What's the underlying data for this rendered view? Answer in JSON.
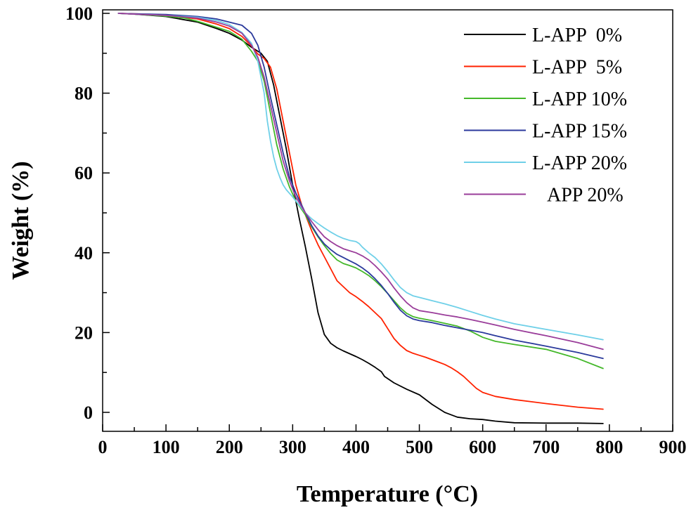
{
  "chart_data": {
    "type": "line",
    "title": "",
    "xlabel": "Temperature (°C)",
    "ylabel": "Weight (%)",
    "xlim": [
      0,
      900
    ],
    "ylim": [
      -5,
      101
    ],
    "xticks": [
      0,
      100,
      200,
      300,
      400,
      500,
      600,
      700,
      800,
      900
    ],
    "xtick_labels": [
      "0",
      "100",
      "200",
      "300",
      "400",
      "500",
      "600",
      "700",
      "800",
      "900"
    ],
    "yticks": [
      0,
      20,
      40,
      60,
      80,
      100
    ],
    "ytick_labels": [
      "0",
      "20",
      "40",
      "60",
      "80",
      "100"
    ],
    "legend_position": "top-right",
    "grid": false,
    "series": [
      {
        "name": "L-APP  0%",
        "color": "#000000",
        "x": [
          25,
          50,
          100,
          150,
          180,
          200,
          220,
          235,
          250,
          260,
          270,
          280,
          290,
          300,
          310,
          320,
          330,
          340,
          350,
          360,
          370,
          380,
          390,
          400,
          410,
          420,
          430,
          440,
          445,
          460,
          480,
          500,
          520,
          540,
          560,
          580,
          600,
          620,
          650,
          700,
          750,
          790
        ],
        "y": [
          100,
          99.8,
          99.2,
          97.8,
          96.2,
          95,
          93.3,
          91.5,
          90,
          88,
          82,
          74,
          66,
          57,
          49,
          41.5,
          33.5,
          25,
          19.5,
          17.3,
          16.2,
          15.4,
          14.7,
          14,
          13.2,
          12.3,
          11.3,
          10.2,
          9,
          7.4,
          5.8,
          4.4,
          2,
          0,
          -1.2,
          -1.6,
          -1.8,
          -2.2,
          -2.6,
          -2.7,
          -2.7,
          -2.8
        ]
      },
      {
        "name": "L-APP  5%",
        "color": "#ff2200",
        "x": [
          25,
          50,
          100,
          150,
          180,
          200,
          220,
          235,
          245,
          255,
          265,
          275,
          285,
          295,
          305,
          315,
          320,
          330,
          340,
          350,
          360,
          370,
          380,
          390,
          400,
          410,
          420,
          430,
          440,
          450,
          460,
          470,
          480,
          490,
          500,
          510,
          520,
          530,
          540,
          550,
          560,
          570,
          580,
          590,
          600,
          620,
          650,
          700,
          750,
          790
        ],
        "y": [
          100,
          99.9,
          99.6,
          98.6,
          97.3,
          96.2,
          94.2,
          91.8,
          89.8,
          88.7,
          86.5,
          81,
          73,
          65,
          57,
          51.5,
          49.5,
          45.5,
          42,
          39,
          36,
          33,
          31.5,
          30,
          29,
          27.8,
          26.5,
          25,
          23.5,
          21,
          18.5,
          16.8,
          15.5,
          14.8,
          14.3,
          13.8,
          13.2,
          12.6,
          12,
          11.2,
          10.2,
          9,
          7.5,
          6,
          5,
          4,
          3.2,
          2.2,
          1.3,
          0.8
        ]
      },
      {
        "name": "L-APP 10%",
        "color": "#44b82a",
        "x": [
          25,
          50,
          100,
          130,
          150,
          180,
          200,
          220,
          235,
          245,
          255,
          265,
          275,
          285,
          295,
          305,
          320,
          330,
          340,
          350,
          360,
          370,
          380,
          390,
          400,
          410,
          420,
          430,
          440,
          450,
          460,
          470,
          480,
          490,
          500,
          520,
          540,
          560,
          580,
          600,
          620,
          650,
          700,
          750,
          790
        ],
        "y": [
          100,
          99.8,
          99.3,
          98.8,
          98,
          96.5,
          95.5,
          93.5,
          90.5,
          88,
          83,
          75,
          67,
          61,
          56.5,
          53,
          49.5,
          46.5,
          44,
          41.8,
          39.8,
          38.2,
          37.3,
          36.8,
          36.2,
          35.3,
          34.3,
          33,
          31.5,
          29.8,
          28,
          26.2,
          24.8,
          24,
          23.6,
          23,
          22.3,
          21.6,
          20.4,
          18.8,
          17.8,
          17,
          15.8,
          13.5,
          11
        ]
      },
      {
        "name": "L-APP 15%",
        "color": "#2b3a9c",
        "x": [
          25,
          50,
          100,
          150,
          180,
          200,
          220,
          235,
          245,
          255,
          265,
          275,
          285,
          295,
          305,
          320,
          330,
          340,
          350,
          360,
          370,
          380,
          390,
          400,
          410,
          420,
          430,
          440,
          450,
          460,
          470,
          480,
          490,
          500,
          520,
          540,
          560,
          580,
          600,
          620,
          650,
          700,
          750,
          790
        ],
        "y": [
          100,
          99.9,
          99.7,
          99.2,
          98.6,
          97.8,
          97,
          95,
          92,
          86.5,
          79,
          72,
          65,
          59,
          55,
          50,
          46.8,
          44.2,
          42.2,
          40.8,
          39.6,
          38.8,
          38,
          37.2,
          36.2,
          35,
          33.5,
          31.8,
          29.8,
          27.6,
          25.6,
          24.2,
          23.4,
          23,
          22.5,
          21.8,
          21.2,
          20.6,
          20,
          19.2,
          18.1,
          16.6,
          15,
          13.5
        ]
      },
      {
        "name": "L-APP 20%",
        "color": "#6fd0e8",
        "x": [
          25,
          50,
          100,
          150,
          180,
          200,
          220,
          235,
          245,
          255,
          260,
          265,
          270,
          275,
          280,
          285,
          290,
          300,
          310,
          320,
          330,
          340,
          350,
          360,
          370,
          380,
          390,
          400,
          405,
          410,
          420,
          430,
          440,
          450,
          460,
          470,
          480,
          490,
          500,
          520,
          540,
          560,
          580,
          600,
          620,
          650,
          700,
          750,
          790
        ],
        "y": [
          100,
          99.8,
          99.5,
          99,
          98.2,
          97.2,
          95.2,
          92.5,
          88,
          80,
          73,
          68,
          64,
          61,
          58.8,
          57,
          55.8,
          54,
          52,
          50,
          48.5,
          47.3,
          46.2,
          45.2,
          44.3,
          43.6,
          43.1,
          42.8,
          42.3,
          41.4,
          40,
          38.8,
          37.2,
          35.3,
          33.2,
          31.3,
          30,
          29.2,
          28.8,
          28,
          27.2,
          26.3,
          25.3,
          24.3,
          23.4,
          22.2,
          20.8,
          19.4,
          18.2
        ]
      },
      {
        "name": "APP 20%",
        "color": "#9a3d9a",
        "x": [
          25,
          50,
          100,
          150,
          180,
          200,
          220,
          235,
          245,
          255,
          265,
          275,
          285,
          295,
          305,
          320,
          330,
          340,
          350,
          360,
          370,
          380,
          390,
          400,
          410,
          420,
          430,
          440,
          450,
          460,
          470,
          480,
          490,
          500,
          520,
          540,
          560,
          580,
          600,
          620,
          650,
          700,
          750,
          790
        ],
        "y": [
          100,
          99.8,
          99.5,
          98.8,
          97.8,
          96.8,
          95,
          92,
          89,
          84,
          77,
          70,
          63,
          58,
          54,
          50,
          47.8,
          45.8,
          44,
          42.8,
          41.8,
          41,
          40.5,
          40,
          39.2,
          38.2,
          36.8,
          35.2,
          33.4,
          31.2,
          29.2,
          27.5,
          26.2,
          25.5,
          25,
          24.4,
          23.9,
          23.3,
          22.6,
          21.9,
          20.8,
          19.2,
          17.5,
          15.8
        ]
      }
    ]
  }
}
